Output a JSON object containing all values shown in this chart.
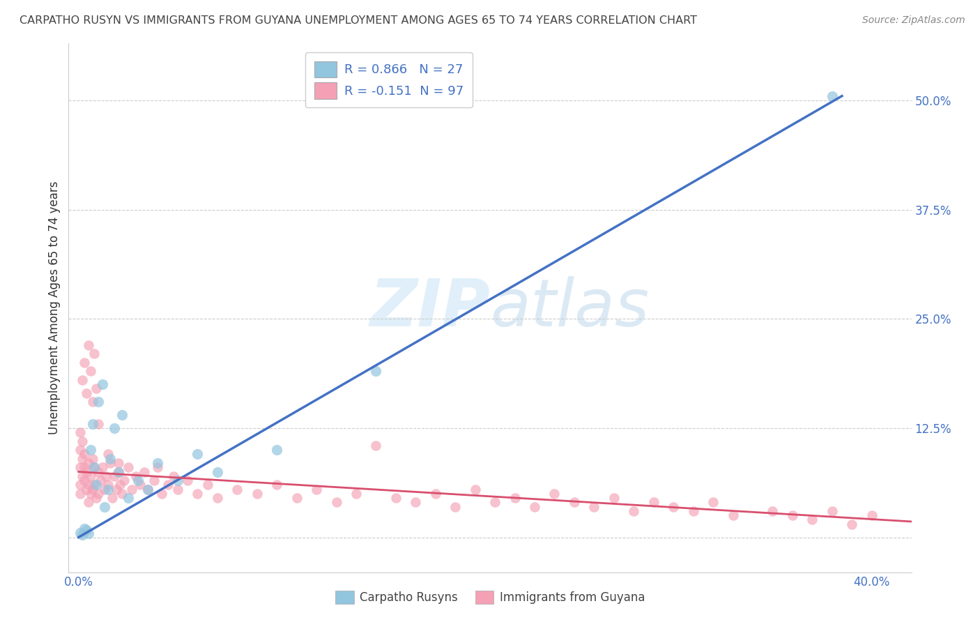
{
  "title": "CARPATHO RUSYN VS IMMIGRANTS FROM GUYANA UNEMPLOYMENT AMONG AGES 65 TO 74 YEARS CORRELATION CHART",
  "source": "Source: ZipAtlas.com",
  "ylabel": "Unemployment Among Ages 65 to 74 years",
  "xlim": [
    -0.005,
    0.42
  ],
  "ylim": [
    -0.04,
    0.565
  ],
  "xtick_positions": [
    0.0,
    0.4
  ],
  "xtick_labels": [
    "0.0%",
    "40.0%"
  ],
  "ytick_positions": [
    0.0,
    0.125,
    0.25,
    0.375,
    0.5
  ],
  "ytick_labels": [
    "",
    "12.5%",
    "25.0%",
    "37.5%",
    "50.0%"
  ],
  "grid_color": "#cccccc",
  "background_color": "#ffffff",
  "watermark_zip": "ZIP",
  "watermark_atlas": "atlas",
  "legend_line1": "R = 0.866   N = 27",
  "legend_line2": "R = -0.151  N = 97",
  "legend_label1": "Carpatho Rusyns",
  "legend_label2": "Immigrants from Guyana",
  "blue_color": "#92c5de",
  "pink_color": "#f4a0b5",
  "line_blue_color": "#4472c4",
  "line_pink_color": "#d94f6e",
  "blue_scatter_x": [
    0.001,
    0.002,
    0.003,
    0.004,
    0.005,
    0.006,
    0.007,
    0.008,
    0.009,
    0.01,
    0.012,
    0.013,
    0.015,
    0.016,
    0.018,
    0.02,
    0.022,
    0.025,
    0.03,
    0.035,
    0.04,
    0.05,
    0.06,
    0.07,
    0.1,
    0.15,
    0.38
  ],
  "blue_scatter_y": [
    0.005,
    0.003,
    0.01,
    0.008,
    0.004,
    0.1,
    0.13,
    0.08,
    0.06,
    0.155,
    0.175,
    0.035,
    0.055,
    0.09,
    0.125,
    0.075,
    0.14,
    0.045,
    0.065,
    0.055,
    0.085,
    0.065,
    0.095,
    0.075,
    0.1,
    0.19,
    0.505
  ],
  "pink_scatter_x": [
    0.001,
    0.001,
    0.001,
    0.001,
    0.002,
    0.002,
    0.002,
    0.003,
    0.003,
    0.003,
    0.004,
    0.004,
    0.005,
    0.005,
    0.005,
    0.006,
    0.006,
    0.007,
    0.007,
    0.008,
    0.008,
    0.009,
    0.01,
    0.01,
    0.011,
    0.012,
    0.013,
    0.014,
    0.015,
    0.016,
    0.017,
    0.018,
    0.019,
    0.02,
    0.021,
    0.022,
    0.023,
    0.025,
    0.027,
    0.029,
    0.031,
    0.033,
    0.035,
    0.038,
    0.04,
    0.042,
    0.045,
    0.048,
    0.05,
    0.055,
    0.06,
    0.065,
    0.07,
    0.08,
    0.09,
    0.1,
    0.11,
    0.12,
    0.13,
    0.14,
    0.15,
    0.16,
    0.17,
    0.18,
    0.19,
    0.2,
    0.21,
    0.22,
    0.23,
    0.24,
    0.25,
    0.26,
    0.27,
    0.28,
    0.29,
    0.3,
    0.31,
    0.32,
    0.33,
    0.35,
    0.36,
    0.37,
    0.38,
    0.39,
    0.4,
    0.001,
    0.002,
    0.003,
    0.004,
    0.005,
    0.006,
    0.007,
    0.008,
    0.009,
    0.01,
    0.015,
    0.02
  ],
  "pink_scatter_y": [
    0.05,
    0.08,
    0.1,
    0.06,
    0.09,
    0.11,
    0.07,
    0.095,
    0.065,
    0.08,
    0.075,
    0.055,
    0.085,
    0.06,
    0.04,
    0.07,
    0.05,
    0.09,
    0.055,
    0.08,
    0.06,
    0.045,
    0.075,
    0.05,
    0.065,
    0.08,
    0.055,
    0.07,
    0.06,
    0.085,
    0.045,
    0.07,
    0.055,
    0.075,
    0.06,
    0.05,
    0.065,
    0.08,
    0.055,
    0.07,
    0.06,
    0.075,
    0.055,
    0.065,
    0.08,
    0.05,
    0.06,
    0.07,
    0.055,
    0.065,
    0.05,
    0.06,
    0.045,
    0.055,
    0.05,
    0.06,
    0.045,
    0.055,
    0.04,
    0.05,
    0.105,
    0.045,
    0.04,
    0.05,
    0.035,
    0.055,
    0.04,
    0.045,
    0.035,
    0.05,
    0.04,
    0.035,
    0.045,
    0.03,
    0.04,
    0.035,
    0.03,
    0.04,
    0.025,
    0.03,
    0.025,
    0.02,
    0.03,
    0.015,
    0.025,
    0.12,
    0.18,
    0.2,
    0.165,
    0.22,
    0.19,
    0.155,
    0.21,
    0.17,
    0.13,
    0.095,
    0.085
  ],
  "blue_line_x": [
    0.0,
    0.385
  ],
  "blue_line_y": [
    0.0,
    0.505
  ],
  "pink_line_x": [
    0.0,
    0.42
  ],
  "pink_line_y": [
    0.075,
    0.018
  ]
}
